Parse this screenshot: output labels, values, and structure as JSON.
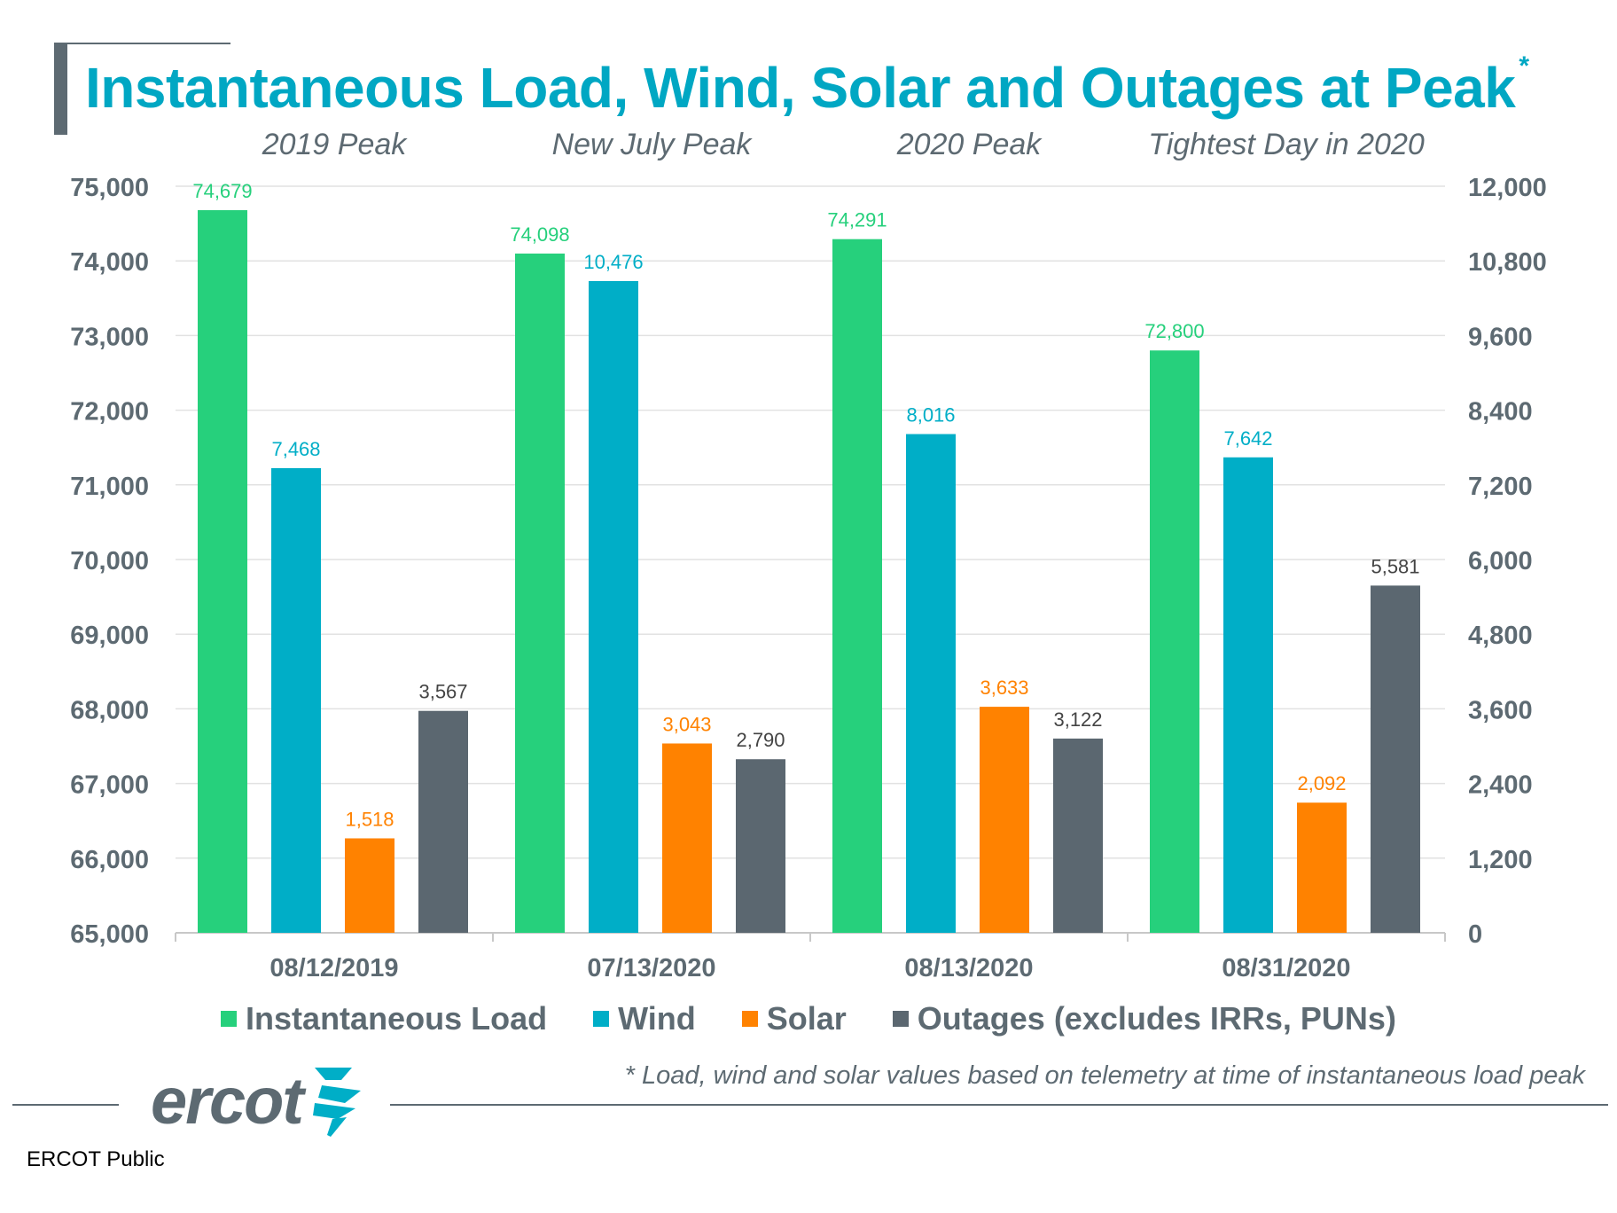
{
  "title": "Instantaneous Load, Wind, Solar and Outages at Peak",
  "title_marker": "*",
  "footnote": "* Load, wind and solar values based on telemetry at time of instantaneous load peak",
  "logo_text": "ercot",
  "classification": "ERCOT Public",
  "colors": {
    "title": "#00a7c3",
    "load": "#26d07c",
    "wind": "#00aec7",
    "solar": "#ff8200",
    "outages": "#5b6770",
    "axis_text": "#5d6a72"
  },
  "chart_data": {
    "type": "bar",
    "categories": [
      "08/12/2019",
      "07/13/2020",
      "08/13/2020",
      "08/31/2020"
    ],
    "group_labels": [
      "2019 Peak",
      "New July Peak",
      "2020 Peak",
      "Tightest Day in 2020"
    ],
    "series": [
      {
        "name": "Instantaneous Load",
        "axis": "left",
        "values": [
          74679,
          74098,
          74291,
          72800
        ],
        "color": "#26d07c"
      },
      {
        "name": "Wind",
        "axis": "right",
        "values": [
          7468,
          10476,
          8016,
          7642
        ],
        "color": "#00aec7"
      },
      {
        "name": "Solar",
        "axis": "right",
        "values": [
          1518,
          3043,
          3633,
          2092
        ],
        "color": "#ff8200"
      },
      {
        "name": "Outages (excludes IRRs, PUNs)",
        "axis": "right",
        "values": [
          3567,
          2790,
          3122,
          5581
        ],
        "color": "#5b6770"
      }
    ],
    "data_labels": [
      [
        "74,679",
        "74,098",
        "74,291",
        "72,800"
      ],
      [
        "7,468",
        "10,476",
        "8,016",
        "7,642"
      ],
      [
        "1,518",
        "3,043",
        "3,633",
        "2,092"
      ],
      [
        "3,567",
        "2,790",
        "3,122",
        "5,581"
      ]
    ],
    "y_left": {
      "lim": [
        65000,
        75000
      ],
      "ticks": [
        65000,
        66000,
        67000,
        68000,
        69000,
        70000,
        71000,
        72000,
        73000,
        74000,
        75000
      ],
      "tick_labels": [
        "65,000",
        "66,000",
        "67,000",
        "68,000",
        "69,000",
        "70,000",
        "71,000",
        "72,000",
        "73,000",
        "74,000",
        "75,000"
      ]
    },
    "y_right": {
      "lim": [
        0,
        12000
      ],
      "ticks": [
        0,
        1200,
        2400,
        3600,
        4800,
        6000,
        7200,
        8400,
        9600,
        10800,
        12000
      ],
      "tick_labels": [
        "0",
        "1,200",
        "2,400",
        "3,600",
        "4,800",
        "6,000",
        "7,200",
        "8,400",
        "9,600",
        "10,800",
        "12,000"
      ]
    },
    "grid": true,
    "legend": "bottom"
  }
}
